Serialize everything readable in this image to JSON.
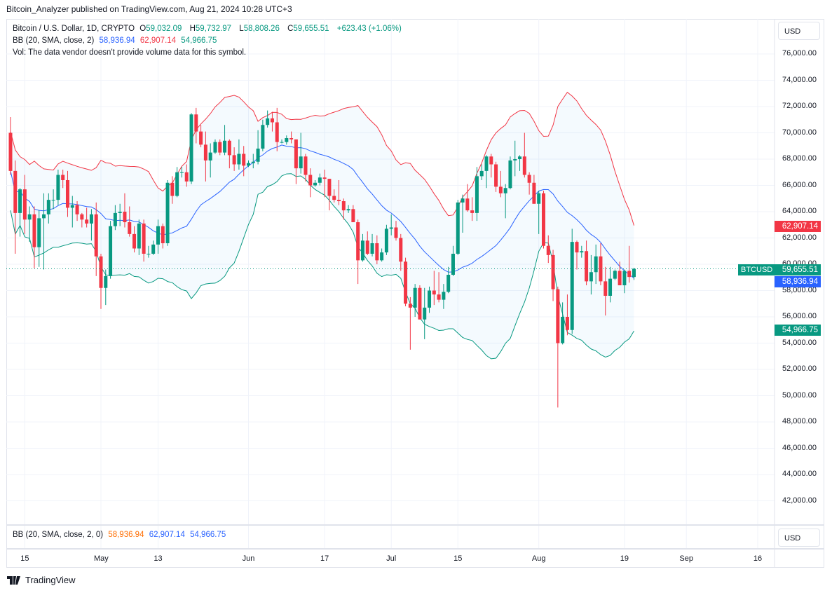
{
  "header": {
    "published": "Bitcoin_Analyzer published on TradingView.com, Aug 21, 2024 10:28 UTC+3"
  },
  "legend": {
    "symbol": "Bitcoin / U.S. Dollar, 1D, CRYPTO",
    "o_label": "O",
    "o": "59,032.09",
    "h_label": "H",
    "h": "59,732.97",
    "l_label": "L",
    "l": "58,808.26",
    "c_label": "C",
    "c": "59,655.51",
    "change": "+623.43 (+1.06%)",
    "bb_label": "BB (20, SMA, close, 2)",
    "bb_basis": "58,936.94",
    "bb_upper": "62,907.14",
    "bb_lower": "54,966.75",
    "vol": "Vol: The data vendor doesn't provide volume data for this symbol."
  },
  "lower_pane": {
    "bb_label": "BB (20, SMA, close, 2, 0)",
    "bb_basis": "58,936.94",
    "bb_upper": "62,907.14",
    "bb_lower": "54,966.75",
    "currency": "USD"
  },
  "price_axis": {
    "currency": "USD",
    "ticks": [
      "76,000.00",
      "74,000.00",
      "72,000.00",
      "70,000.00",
      "68,000.00",
      "66,000.00",
      "64,000.00",
      "62,000.00",
      "60,000.00",
      "58,000.00",
      "56,000.00",
      "54,000.00",
      "52,000.00",
      "50,000.00",
      "48,000.00",
      "46,000.00",
      "44,000.00",
      "42,000.00"
    ]
  },
  "badges": {
    "symbol": "BTCUSD",
    "last": "59,655.51",
    "upper": "62,907.14",
    "basis": "58,936.94",
    "lower": "54,966.75"
  },
  "time_axis": {
    "labels": [
      {
        "text": "15",
        "date": "2024-04-15"
      },
      {
        "text": "May",
        "date": "2024-05-01"
      },
      {
        "text": "13",
        "date": "2024-05-13"
      },
      {
        "text": "Jun",
        "date": "2024-06-01"
      },
      {
        "text": "17",
        "date": "2024-06-17"
      },
      {
        "text": "Jul",
        "date": "2024-07-01"
      },
      {
        "text": "15",
        "date": "2024-07-15"
      },
      {
        "text": "Aug",
        "date": "2024-08-01"
      },
      {
        "text": "19",
        "date": "2024-08-19"
      },
      {
        "text": "Sep",
        "date": "2024-09-01"
      },
      {
        "text": "16",
        "date": "2024-09-16"
      }
    ]
  },
  "footer": {
    "brand": "TradingView"
  },
  "colors": {
    "up": "#089981",
    "down": "#f23645",
    "basis": "#2962ff",
    "upper": "#f23645",
    "lower": "#089981",
    "fill": "#2196f3"
  },
  "chart_data": {
    "type": "candlestick",
    "indicator": "Bollinger Bands (20, SMA, close, 2)",
    "ylim": [
      40000,
      78000
    ],
    "grid": true,
    "last_price": 59655.51,
    "candles": [
      [
        "2024-04-12",
        70000,
        71200,
        66800,
        67100
      ],
      [
        "2024-04-13",
        67100,
        67900,
        60800,
        63900
      ],
      [
        "2024-04-14",
        63900,
        65800,
        62100,
        65700
      ],
      [
        "2024-04-15",
        65700,
        66800,
        62300,
        63400
      ],
      [
        "2024-04-16",
        63400,
        64400,
        61700,
        63800
      ],
      [
        "2024-04-17",
        63800,
        64400,
        59700,
        61300
      ],
      [
        "2024-04-18",
        61300,
        64100,
        59800,
        63500
      ],
      [
        "2024-04-19",
        63500,
        65400,
        59600,
        63800
      ],
      [
        "2024-04-20",
        63800,
        65400,
        63100,
        64900
      ],
      [
        "2024-04-21",
        64900,
        65700,
        64200,
        64900
      ],
      [
        "2024-04-22",
        64900,
        67200,
        64500,
        66800
      ],
      [
        "2024-04-23",
        66800,
        67200,
        65800,
        66400
      ],
      [
        "2024-04-24",
        66400,
        67100,
        63600,
        64300
      ],
      [
        "2024-04-25",
        64300,
        65200,
        62800,
        64500
      ],
      [
        "2024-04-26",
        64500,
        64800,
        63300,
        63800
      ],
      [
        "2024-04-27",
        63800,
        63900,
        62800,
        63400
      ],
      [
        "2024-04-28",
        63400,
        64300,
        62800,
        63100
      ],
      [
        "2024-04-29",
        63100,
        64200,
        61800,
        63800
      ],
      [
        "2024-04-30",
        63800,
        64700,
        59100,
        60600
      ],
      [
        "2024-05-01",
        60600,
        60800,
        56600,
        58200
      ],
      [
        "2024-05-02",
        58200,
        59600,
        56900,
        59100
      ],
      [
        "2024-05-03",
        59100,
        63300,
        58900,
        62900
      ],
      [
        "2024-05-04",
        62900,
        64500,
        62600,
        63900
      ],
      [
        "2024-05-05",
        63900,
        64600,
        62900,
        64000
      ],
      [
        "2024-05-06",
        64000,
        65400,
        62800,
        63200
      ],
      [
        "2024-05-07",
        63200,
        64400,
        62100,
        62300
      ],
      [
        "2024-05-08",
        62300,
        62900,
        60900,
        61200
      ],
      [
        "2024-05-09",
        61200,
        63400,
        60700,
        63100
      ],
      [
        "2024-05-10",
        63100,
        63400,
        60200,
        60800
      ],
      [
        "2024-05-11",
        60800,
        61400,
        60500,
        60800
      ],
      [
        "2024-05-12",
        60800,
        61800,
        60700,
        61500
      ],
      [
        "2024-05-13",
        61500,
        63400,
        60800,
        62900
      ],
      [
        "2024-05-14",
        62900,
        63100,
        61200,
        61600
      ],
      [
        "2024-05-15",
        61600,
        66400,
        61400,
        66200
      ],
      [
        "2024-05-16",
        66200,
        66700,
        64600,
        65200
      ],
      [
        "2024-05-17",
        65200,
        67400,
        65100,
        67000
      ],
      [
        "2024-05-18",
        67000,
        67400,
        66600,
        67000
      ],
      [
        "2024-05-19",
        67000,
        67600,
        65900,
        66300
      ],
      [
        "2024-05-20",
        66300,
        71500,
        66100,
        71400
      ],
      [
        "2024-05-21",
        71400,
        71900,
        69200,
        70100
      ],
      [
        "2024-05-22",
        70100,
        70600,
        68900,
        69100
      ],
      [
        "2024-05-23",
        69100,
        70100,
        66300,
        67900
      ],
      [
        "2024-05-24",
        67900,
        69200,
        66600,
        68500
      ],
      [
        "2024-05-25",
        68500,
        69500,
        68400,
        69300
      ],
      [
        "2024-05-26",
        69300,
        69500,
        68300,
        68500
      ],
      [
        "2024-05-27",
        68500,
        70600,
        68300,
        69400
      ],
      [
        "2024-05-28",
        69400,
        69500,
        67300,
        68300
      ],
      [
        "2024-05-29",
        68300,
        68900,
        67100,
        67600
      ],
      [
        "2024-05-30",
        67600,
        69500,
        67200,
        68400
      ],
      [
        "2024-05-31",
        68400,
        69000,
        66700,
        67500
      ],
      [
        "2024-06-01",
        67500,
        67900,
        67400,
        67700
      ],
      [
        "2024-06-02",
        67700,
        68400,
        67300,
        67800
      ],
      [
        "2024-06-03",
        67800,
        70200,
        67600,
        68800
      ],
      [
        "2024-06-04",
        68800,
        71000,
        68600,
        70600
      ],
      [
        "2024-06-05",
        70600,
        71700,
        70400,
        71100
      ],
      [
        "2024-06-06",
        71100,
        71600,
        70100,
        70800
      ],
      [
        "2024-06-07",
        70800,
        71900,
        68600,
        69300
      ],
      [
        "2024-06-08",
        69300,
        69500,
        69200,
        69300
      ],
      [
        "2024-06-09",
        69300,
        69800,
        69100,
        69600
      ],
      [
        "2024-06-10",
        69600,
        70100,
        69200,
        69500
      ],
      [
        "2024-06-11",
        69500,
        69500,
        66100,
        67300
      ],
      [
        "2024-06-12",
        67300,
        70000,
        66900,
        68200
      ],
      [
        "2024-06-13",
        68200,
        68400,
        66300,
        66800
      ],
      [
        "2024-06-14",
        66800,
        67300,
        65100,
        66000
      ],
      [
        "2024-06-15",
        66000,
        66400,
        65900,
        66200
      ],
      [
        "2024-06-16",
        66200,
        66900,
        66000,
        66600
      ],
      [
        "2024-06-17",
        66600,
        67200,
        65100,
        66500
      ],
      [
        "2024-06-18",
        66500,
        66500,
        64100,
        65200
      ],
      [
        "2024-06-19",
        65200,
        65700,
        64700,
        64900
      ],
      [
        "2024-06-20",
        64900,
        66400,
        64500,
        64800
      ],
      [
        "2024-06-21",
        64800,
        65000,
        63400,
        64100
      ],
      [
        "2024-06-22",
        64100,
        64500,
        63900,
        64200
      ],
      [
        "2024-06-23",
        64200,
        64500,
        63200,
        63200
      ],
      [
        "2024-06-24",
        63200,
        63400,
        58500,
        60300
      ],
      [
        "2024-06-25",
        60300,
        62300,
        60200,
        61800
      ],
      [
        "2024-06-26",
        61800,
        62500,
        60700,
        60800
      ],
      [
        "2024-06-27",
        60800,
        62300,
        60600,
        61600
      ],
      [
        "2024-06-28",
        61600,
        62200,
        60000,
        60300
      ],
      [
        "2024-06-29",
        60300,
        61200,
        60200,
        60900
      ],
      [
        "2024-06-30",
        60900,
        63000,
        60700,
        62700
      ],
      [
        "2024-07-01",
        62700,
        63800,
        62200,
        62800
      ],
      [
        "2024-07-02",
        62800,
        63300,
        61800,
        62000
      ],
      [
        "2024-07-03",
        62000,
        62300,
        59500,
        60200
      ],
      [
        "2024-07-04",
        60200,
        60500,
        56800,
        57000
      ],
      [
        "2024-07-05",
        57000,
        57500,
        53500,
        56700
      ],
      [
        "2024-07-06",
        56700,
        58500,
        56000,
        58200
      ],
      [
        "2024-07-07",
        58200,
        58400,
        55800,
        55800
      ],
      [
        "2024-07-08",
        55800,
        58200,
        54300,
        56700
      ],
      [
        "2024-07-09",
        56700,
        58300,
        56300,
        58000
      ],
      [
        "2024-07-10",
        58000,
        59500,
        56900,
        57700
      ],
      [
        "2024-07-11",
        57700,
        59400,
        57100,
        57300
      ],
      [
        "2024-07-12",
        57300,
        58500,
        56600,
        57900
      ],
      [
        "2024-07-13",
        57900,
        59800,
        57800,
        59200
      ],
      [
        "2024-07-14",
        59200,
        61400,
        59100,
        60800
      ],
      [
        "2024-07-15",
        60800,
        64900,
        60700,
        64700
      ],
      [
        "2024-07-16",
        64700,
        65300,
        62400,
        65000
      ],
      [
        "2024-07-17",
        65000,
        66100,
        64000,
        64100
      ],
      [
        "2024-07-18",
        64100,
        65100,
        63300,
        63900
      ],
      [
        "2024-07-19",
        63900,
        67400,
        63300,
        66700
      ],
      [
        "2024-07-20",
        66700,
        67600,
        66400,
        67100
      ],
      [
        "2024-07-21",
        67100,
        68300,
        65800,
        68200
      ],
      [
        "2024-07-22",
        68200,
        68400,
        66600,
        67600
      ],
      [
        "2024-07-23",
        67600,
        67800,
        65500,
        65900
      ],
      [
        "2024-07-24",
        65900,
        67100,
        65100,
        65400
      ],
      [
        "2024-07-25",
        65400,
        66100,
        63500,
        65800
      ],
      [
        "2024-07-26",
        65800,
        68200,
        65700,
        67900
      ],
      [
        "2024-07-27",
        67900,
        69400,
        66700,
        68000
      ],
      [
        "2024-07-28",
        68000,
        68300,
        67100,
        68200
      ],
      [
        "2024-07-29",
        68200,
        70000,
        66600,
        66800
      ],
      [
        "2024-07-30",
        66800,
        67000,
        65300,
        66200
      ],
      [
        "2024-07-31",
        66200,
        66800,
        64600,
        64600
      ],
      [
        "2024-08-01",
        64600,
        65600,
        62300,
        65400
      ],
      [
        "2024-08-02",
        65400,
        65600,
        61200,
        61400
      ],
      [
        "2024-08-03",
        61400,
        62200,
        60100,
        60700
      ],
      [
        "2024-08-04",
        60700,
        61100,
        57200,
        58100
      ],
      [
        "2024-08-05",
        58100,
        58300,
        49100,
        54000
      ],
      [
        "2024-08-06",
        54000,
        57100,
        53900,
        56000
      ],
      [
        "2024-08-07",
        56000,
        57700,
        54600,
        55000
      ],
      [
        "2024-08-08",
        55000,
        62700,
        54700,
        61700
      ],
      [
        "2024-08-09",
        61700,
        61800,
        59600,
        60900
      ],
      [
        "2024-08-10",
        60900,
        61400,
        60500,
        61000
      ],
      [
        "2024-08-11",
        61000,
        61800,
        58400,
        58700
      ],
      [
        "2024-08-12",
        58700,
        60700,
        57700,
        59400
      ],
      [
        "2024-08-13",
        59400,
        61500,
        58500,
        60600
      ],
      [
        "2024-08-14",
        60600,
        61600,
        58400,
        58700
      ],
      [
        "2024-08-15",
        58700,
        59800,
        56100,
        57600
      ],
      [
        "2024-08-16",
        57600,
        59800,
        57100,
        58900
      ],
      [
        "2024-08-17",
        58900,
        59600,
        58800,
        59500
      ],
      [
        "2024-08-18",
        59500,
        60200,
        58400,
        58400
      ],
      [
        "2024-08-19",
        58400,
        59600,
        57800,
        59500
      ],
      [
        "2024-08-20",
        59500,
        61400,
        58600,
        59032.09
      ],
      [
        "2024-08-21",
        59032.09,
        59732.97,
        58808.26,
        59655.51
      ]
    ]
  }
}
